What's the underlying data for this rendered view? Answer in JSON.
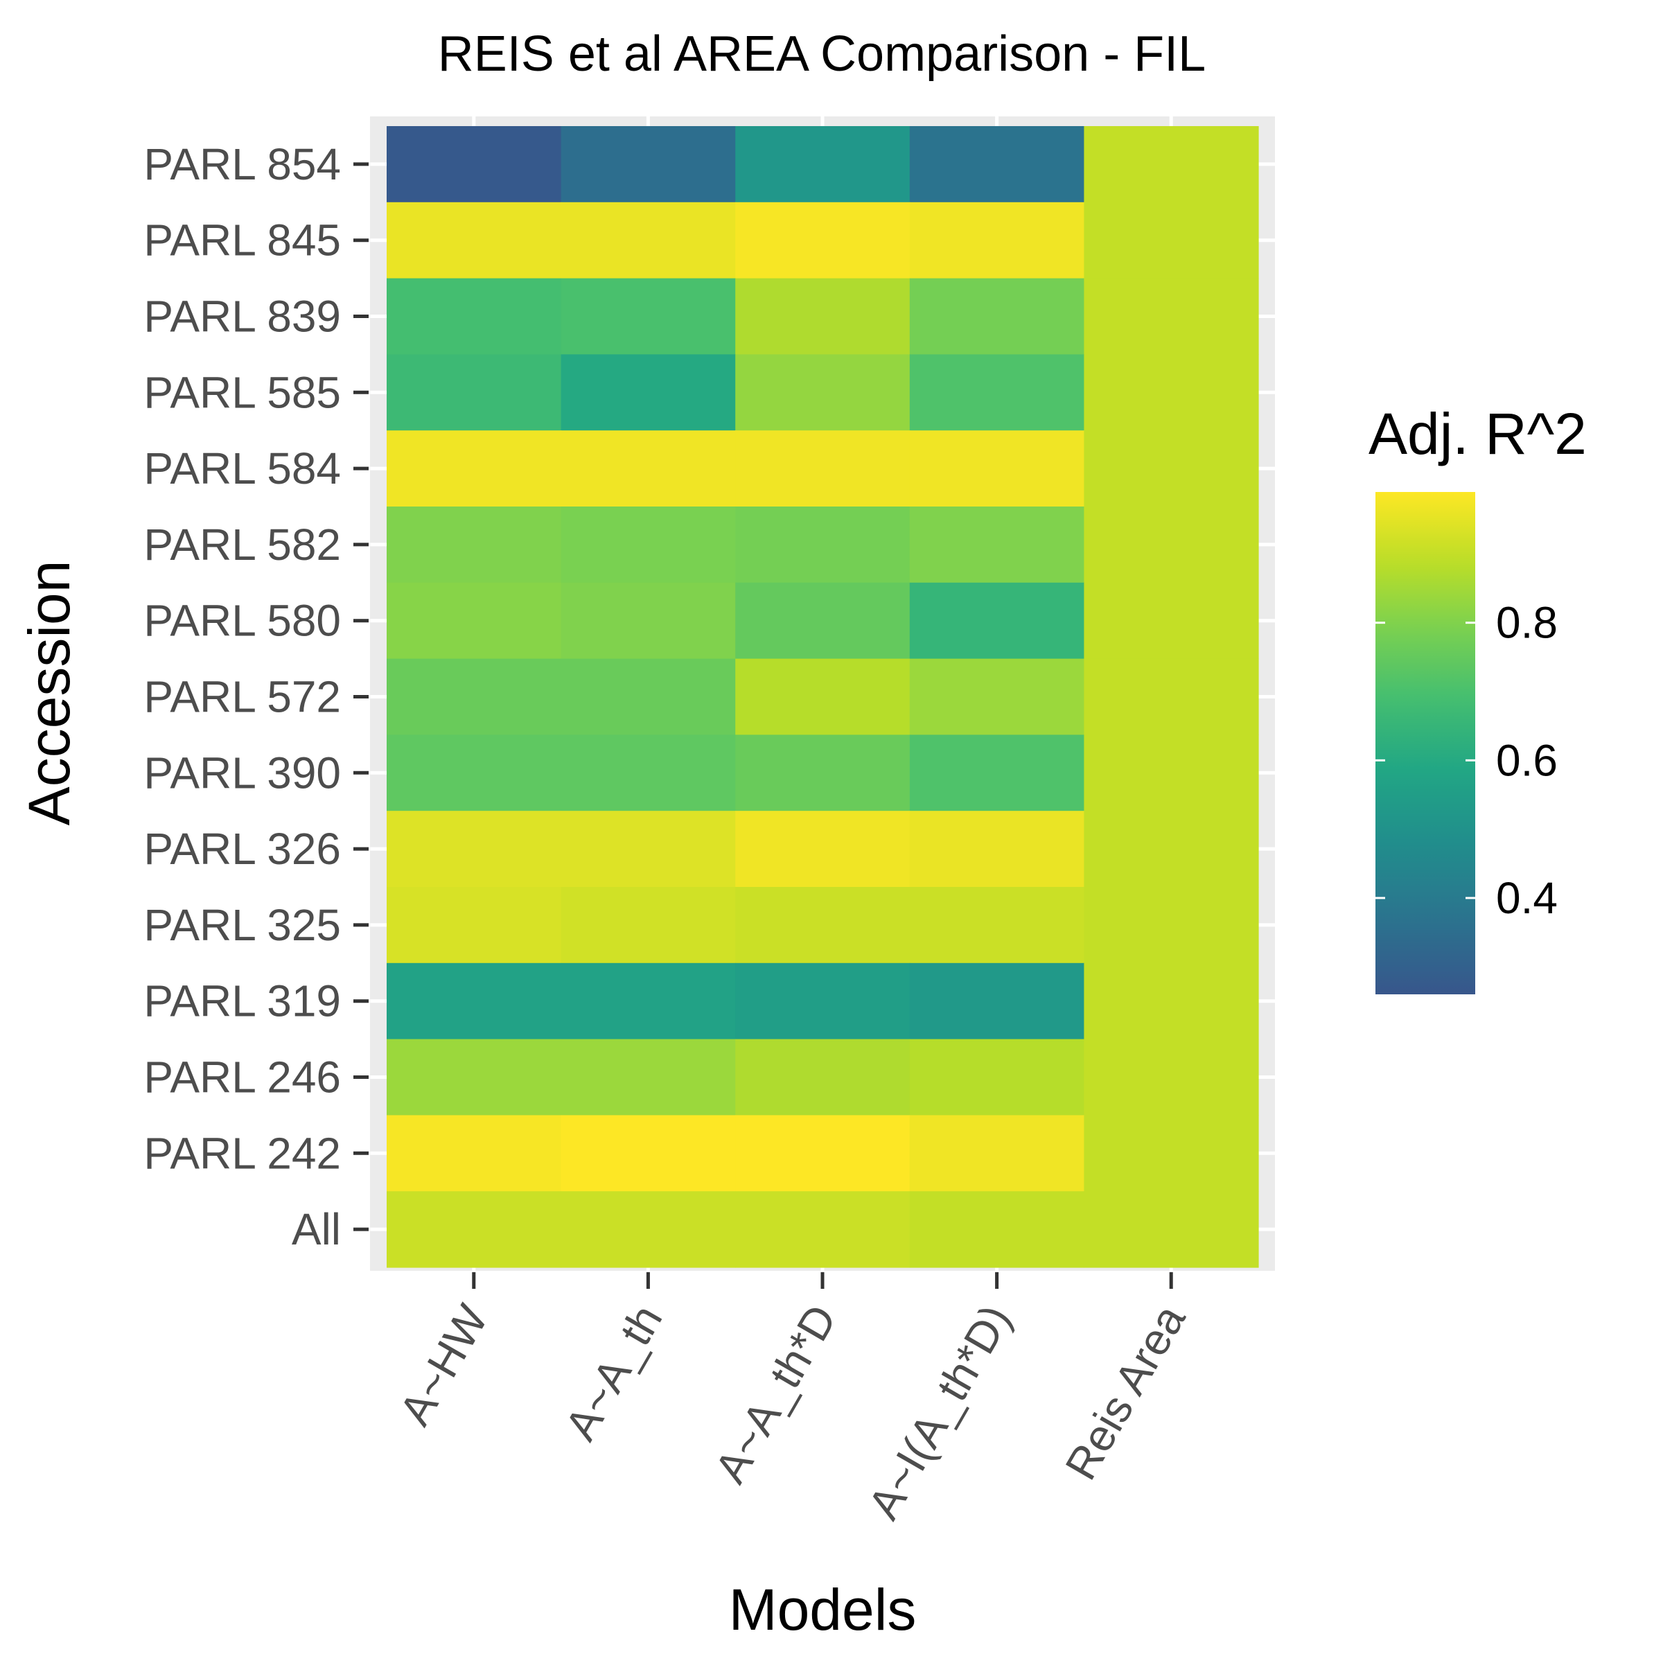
{
  "chart_data": {
    "type": "heatmap",
    "title": "REIS et al AREA Comparison - FIL",
    "xlabel": "Models",
    "ylabel": "Accession",
    "x_categories": [
      "A~HW",
      "A~A_th",
      "A~A_th*D",
      "A~I(A_th*D)",
      "Reis Area"
    ],
    "y_categories": [
      "PARL 854",
      "PARL 845",
      "PARL 839",
      "PARL 585",
      "PARL 584",
      "PARL 582",
      "PARL 580",
      "PARL 572",
      "PARL 390",
      "PARL 326",
      "PARL 325",
      "PARL 319",
      "PARL 246",
      "PARL 242",
      "All"
    ],
    "values": [
      [
        0.27,
        0.35,
        0.52,
        0.37,
        0.9
      ],
      [
        0.96,
        0.96,
        0.98,
        0.97,
        0.9
      ],
      [
        0.69,
        0.7,
        0.87,
        0.78,
        0.9
      ],
      [
        0.67,
        0.6,
        0.83,
        0.71,
        0.9
      ],
      [
        0.97,
        0.97,
        0.97,
        0.97,
        0.9
      ],
      [
        0.8,
        0.79,
        0.78,
        0.8,
        0.9
      ],
      [
        0.81,
        0.8,
        0.75,
        0.65,
        0.9
      ],
      [
        0.76,
        0.76,
        0.88,
        0.84,
        0.9
      ],
      [
        0.74,
        0.74,
        0.76,
        0.71,
        0.9
      ],
      [
        0.94,
        0.94,
        0.97,
        0.96,
        0.9
      ],
      [
        0.93,
        0.92,
        0.91,
        0.91,
        0.9
      ],
      [
        0.57,
        0.57,
        0.55,
        0.53,
        0.9
      ],
      [
        0.84,
        0.84,
        0.87,
        0.88,
        0.9
      ],
      [
        0.98,
        0.99,
        0.99,
        0.97,
        0.9
      ],
      [
        0.91,
        0.91,
        0.91,
        0.9,
        0.9
      ]
    ],
    "legend": {
      "title": "Adj. R^2",
      "ticks": [
        "0.4",
        "0.6",
        "0.8"
      ],
      "tick_values": [
        0.4,
        0.6,
        0.8
      ],
      "range": [
        0.26,
        0.99
      ],
      "colormap": "viridis",
      "position": "right"
    },
    "background_color": "#ebebeb",
    "grid": true
  }
}
